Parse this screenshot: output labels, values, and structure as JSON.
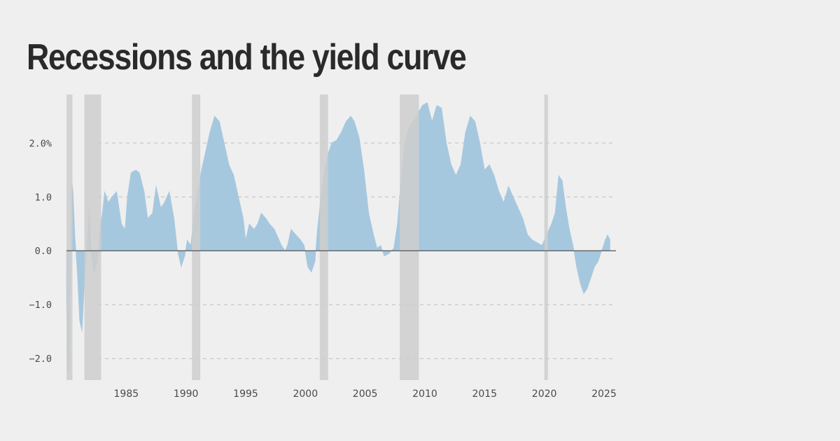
{
  "title": "Recessions and the yield curve",
  "colors": {
    "background": "#efefef",
    "area_fill": "#a6c8df",
    "recession_band": "#cecece",
    "grid": "#bdbdbd",
    "zero_line": "#555555",
    "title": "#2a2a2a",
    "tick_text": "#4a4a4a"
  },
  "chart_data": {
    "type": "area",
    "title": "Recessions and the yield curve",
    "xlabel": "",
    "ylabel": "",
    "xlim": [
      1980.0,
      2026.0
    ],
    "ylim": [
      -2.4,
      2.9
    ],
    "grid": "horizontal dashed",
    "y_ticks": [
      {
        "value": 2.0,
        "label": "2.0%"
      },
      {
        "value": 1.0,
        "label": "1.0"
      },
      {
        "value": 0.0,
        "label": "0.0"
      },
      {
        "value": -1.0,
        "label": "−1.0"
      },
      {
        "value": -2.0,
        "label": "−2.0"
      }
    ],
    "x_ticks": [
      {
        "value": 1985,
        "label": "1985"
      },
      {
        "value": 1990,
        "label": "1990"
      },
      {
        "value": 1995,
        "label": "1995"
      },
      {
        "value": 2000,
        "label": "2000"
      },
      {
        "value": 2005,
        "label": "2005"
      },
      {
        "value": 2010,
        "label": "2010"
      },
      {
        "value": 2015,
        "label": "2015"
      },
      {
        "value": 2020,
        "label": "2020"
      },
      {
        "value": 2025,
        "label": "2025"
      }
    ],
    "recessions": [
      {
        "start": 1980.0,
        "end": 1980.5
      },
      {
        "start": 1981.5,
        "end": 1982.9
      },
      {
        "start": 1990.5,
        "end": 1991.2
      },
      {
        "start": 2001.2,
        "end": 2001.9
      },
      {
        "start": 2007.9,
        "end": 2009.5
      },
      {
        "start": 2020.0,
        "end": 2020.3
      }
    ],
    "series": [
      {
        "name": "",
        "points": [
          [
            1980.0,
            -0.9
          ],
          [
            1980.1,
            -2.1
          ],
          [
            1980.2,
            -2.3
          ],
          [
            1980.35,
            -0.4
          ],
          [
            1980.45,
            1.3
          ],
          [
            1980.55,
            1.1
          ],
          [
            1980.7,
            0.3
          ],
          [
            1980.9,
            -0.4
          ],
          [
            1981.1,
            -1.3
          ],
          [
            1981.3,
            -1.5
          ],
          [
            1981.5,
            -0.6
          ],
          [
            1981.7,
            0.0
          ],
          [
            1981.9,
            0.8
          ],
          [
            1982.1,
            -0.1
          ],
          [
            1982.3,
            -0.4
          ],
          [
            1982.6,
            -0.2
          ],
          [
            1982.8,
            0.4
          ],
          [
            1983.0,
            0.7
          ],
          [
            1983.2,
            1.1
          ],
          [
            1983.5,
            0.9
          ],
          [
            1983.8,
            1.0
          ],
          [
            1984.2,
            1.1
          ],
          [
            1984.6,
            0.5
          ],
          [
            1984.9,
            0.4
          ],
          [
            1985.1,
            1.0
          ],
          [
            1985.4,
            1.45
          ],
          [
            1985.8,
            1.5
          ],
          [
            1986.1,
            1.45
          ],
          [
            1986.5,
            1.1
          ],
          [
            1986.8,
            0.6
          ],
          [
            1987.2,
            0.7
          ],
          [
            1987.5,
            1.2
          ],
          [
            1987.9,
            0.8
          ],
          [
            1988.2,
            0.9
          ],
          [
            1988.6,
            1.1
          ],
          [
            1989.0,
            0.6
          ],
          [
            1989.3,
            0.0
          ],
          [
            1989.6,
            -0.3
          ],
          [
            1989.9,
            -0.1
          ],
          [
            1990.1,
            0.2
          ],
          [
            1990.4,
            0.1
          ],
          [
            1990.7,
            0.7
          ],
          [
            1991.0,
            1.1
          ],
          [
            1991.3,
            1.5
          ],
          [
            1991.7,
            1.9
          ],
          [
            1992.0,
            2.2
          ],
          [
            1992.4,
            2.5
          ],
          [
            1992.8,
            2.4
          ],
          [
            1993.2,
            2.0
          ],
          [
            1993.6,
            1.6
          ],
          [
            1994.0,
            1.4
          ],
          [
            1994.4,
            1.0
          ],
          [
            1994.8,
            0.6
          ],
          [
            1995.0,
            0.2
          ],
          [
            1995.3,
            0.5
          ],
          [
            1995.7,
            0.4
          ],
          [
            1996.0,
            0.5
          ],
          [
            1996.3,
            0.7
          ],
          [
            1996.7,
            0.6
          ],
          [
            1997.0,
            0.5
          ],
          [
            1997.4,
            0.4
          ],
          [
            1997.7,
            0.25
          ],
          [
            1998.0,
            0.1
          ],
          [
            1998.3,
            0.0
          ],
          [
            1998.5,
            0.1
          ],
          [
            1998.8,
            0.4
          ],
          [
            1999.2,
            0.3
          ],
          [
            1999.6,
            0.2
          ],
          [
            1999.9,
            0.1
          ],
          [
            2000.2,
            -0.3
          ],
          [
            2000.5,
            -0.4
          ],
          [
            2000.8,
            -0.2
          ],
          [
            2001.0,
            0.4
          ],
          [
            2001.3,
            1.0
          ],
          [
            2001.6,
            1.5
          ],
          [
            2001.9,
            1.8
          ],
          [
            2002.2,
            2.0
          ],
          [
            2002.6,
            2.05
          ],
          [
            2003.0,
            2.2
          ],
          [
            2003.4,
            2.4
          ],
          [
            2003.8,
            2.5
          ],
          [
            2004.1,
            2.4
          ],
          [
            2004.5,
            2.1
          ],
          [
            2004.9,
            1.5
          ],
          [
            2005.3,
            0.7
          ],
          [
            2005.7,
            0.3
          ],
          [
            2006.0,
            0.05
          ],
          [
            2006.3,
            0.1
          ],
          [
            2006.6,
            -0.1
          ],
          [
            2007.0,
            -0.05
          ],
          [
            2007.4,
            0.05
          ],
          [
            2007.7,
            0.5
          ],
          [
            2008.0,
            1.3
          ],
          [
            2008.3,
            2.0
          ],
          [
            2008.7,
            2.3
          ],
          [
            2009.0,
            2.4
          ],
          [
            2009.4,
            2.55
          ],
          [
            2009.8,
            2.7
          ],
          [
            2010.2,
            2.75
          ],
          [
            2010.6,
            2.4
          ],
          [
            2011.0,
            2.7
          ],
          [
            2011.4,
            2.65
          ],
          [
            2011.8,
            2.0
          ],
          [
            2012.2,
            1.6
          ],
          [
            2012.6,
            1.4
          ],
          [
            2013.0,
            1.6
          ],
          [
            2013.4,
            2.2
          ],
          [
            2013.8,
            2.5
          ],
          [
            2014.2,
            2.4
          ],
          [
            2014.6,
            2.0
          ],
          [
            2015.0,
            1.5
          ],
          [
            2015.4,
            1.6
          ],
          [
            2015.8,
            1.4
          ],
          [
            2016.2,
            1.1
          ],
          [
            2016.6,
            0.9
          ],
          [
            2017.0,
            1.2
          ],
          [
            2017.4,
            1.0
          ],
          [
            2017.8,
            0.8
          ],
          [
            2018.2,
            0.6
          ],
          [
            2018.6,
            0.3
          ],
          [
            2019.0,
            0.2
          ],
          [
            2019.4,
            0.15
          ],
          [
            2019.8,
            0.1
          ],
          [
            2020.2,
            0.3
          ],
          [
            2020.6,
            0.5
          ],
          [
            2020.9,
            0.7
          ],
          [
            2021.2,
            1.4
          ],
          [
            2021.5,
            1.3
          ],
          [
            2021.8,
            0.8
          ],
          [
            2022.1,
            0.4
          ],
          [
            2022.4,
            0.1
          ],
          [
            2022.7,
            -0.3
          ],
          [
            2023.0,
            -0.6
          ],
          [
            2023.3,
            -0.8
          ],
          [
            2023.6,
            -0.7
          ],
          [
            2023.9,
            -0.5
          ],
          [
            2024.2,
            -0.3
          ],
          [
            2024.5,
            -0.2
          ],
          [
            2024.8,
            0.0
          ],
          [
            2025.1,
            0.2
          ],
          [
            2025.3,
            0.3
          ],
          [
            2025.5,
            0.2
          ]
        ]
      }
    ]
  }
}
